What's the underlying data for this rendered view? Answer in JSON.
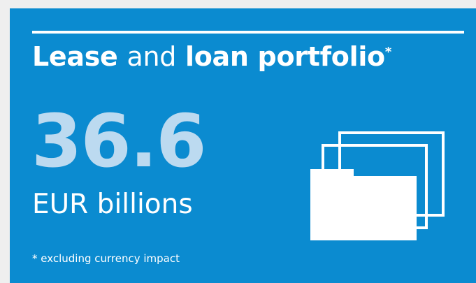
{
  "card": {
    "title_bold_1": "Lease",
    "title_light": "and",
    "title_bold_2": "loan portfolio",
    "title_marker": "*",
    "value": "36.6",
    "unit": "EUR billions",
    "footnote": "* excluding currency impact",
    "icon": "stacked-folders-icon"
  },
  "colors": {
    "background": "#0b8bd0",
    "value": "#bcdaf0",
    "text": "#ffffff",
    "page": "#efefef"
  }
}
